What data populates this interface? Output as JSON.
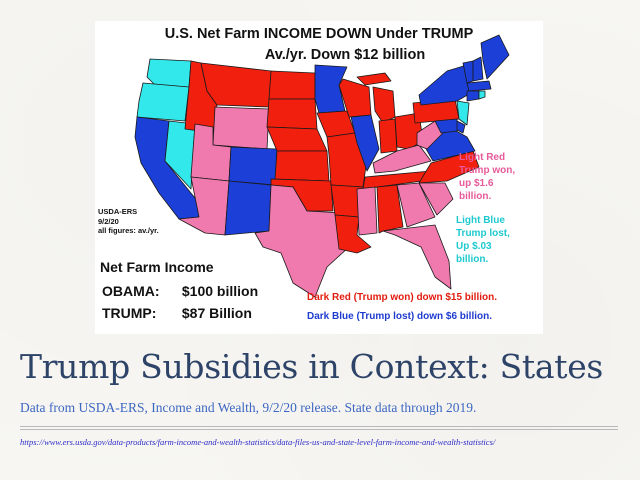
{
  "colors": {
    "dark_red": "#f01f0e",
    "light_red": "#f07aae",
    "dark_blue": "#1c3fd8",
    "light_blue": "#33e8ea",
    "title_color": "#2e4368",
    "subtitle_color": "#3d67c2"
  },
  "map": {
    "title": "U.S. Net Farm INCOME DOWN Under TRUMP",
    "subtitle": "Av./yr. Down $12 billion",
    "source_note": "USDA-ERS\n9/2/20\nall figures: av./yr.",
    "income_heading": "Net Farm Income",
    "income_rows": [
      {
        "label": "OBAMA:",
        "value": "$100 billion"
      },
      {
        "label": "TRUMP:",
        "value": "$87 Billion"
      }
    ],
    "legend_light_red": "Light Red\nTrump won,\nup $1.6\nbillion.",
    "legend_light_blue": "Light Blue\nTrump lost,\nUp $.03\nbillion.",
    "legend_dark_red": "Dark Red (Trump won) down $15 billion.",
    "legend_dark_blue": "Dark Blue (Trump lost) down $6 billion.",
    "states": [
      {
        "name": "WA",
        "category": "light_blue"
      },
      {
        "name": "OR",
        "category": "light_blue"
      },
      {
        "name": "CA",
        "category": "dark_blue"
      },
      {
        "name": "NV",
        "category": "light_blue"
      },
      {
        "name": "ID",
        "category": "dark_red"
      },
      {
        "name": "MT",
        "category": "dark_red"
      },
      {
        "name": "WY",
        "category": "light_red"
      },
      {
        "name": "UT",
        "category": "light_red"
      },
      {
        "name": "AZ",
        "category": "light_red"
      },
      {
        "name": "CO",
        "category": "dark_blue"
      },
      {
        "name": "NM",
        "category": "dark_blue"
      },
      {
        "name": "ND",
        "category": "dark_red"
      },
      {
        "name": "SD",
        "category": "dark_red"
      },
      {
        "name": "NE",
        "category": "dark_red"
      },
      {
        "name": "KS",
        "category": "dark_red"
      },
      {
        "name": "OK",
        "category": "dark_red"
      },
      {
        "name": "TX",
        "category": "light_red"
      },
      {
        "name": "MN",
        "category": "dark_blue"
      },
      {
        "name": "IA",
        "category": "dark_red"
      },
      {
        "name": "MO",
        "category": "dark_red"
      },
      {
        "name": "AR",
        "category": "dark_red"
      },
      {
        "name": "LA",
        "category": "dark_red"
      },
      {
        "name": "WI",
        "category": "dark_red"
      },
      {
        "name": "IL",
        "category": "dark_blue"
      },
      {
        "name": "MI",
        "category": "dark_red"
      },
      {
        "name": "IN",
        "category": "dark_red"
      },
      {
        "name": "OH",
        "category": "dark_red"
      },
      {
        "name": "KY",
        "category": "light_red"
      },
      {
        "name": "TN",
        "category": "dark_red"
      },
      {
        "name": "MS",
        "category": "light_red"
      },
      {
        "name": "AL",
        "category": "dark_red"
      },
      {
        "name": "GA",
        "category": "light_red"
      },
      {
        "name": "FL",
        "category": "light_red"
      },
      {
        "name": "SC",
        "category": "light_red"
      },
      {
        "name": "NC",
        "category": "dark_red"
      },
      {
        "name": "VA",
        "category": "dark_blue"
      },
      {
        "name": "WV",
        "category": "light_red"
      },
      {
        "name": "PA",
        "category": "dark_red"
      },
      {
        "name": "NY",
        "category": "dark_blue"
      },
      {
        "name": "NJ",
        "category": "light_blue"
      },
      {
        "name": "DE",
        "category": "dark_blue"
      },
      {
        "name": "MD",
        "category": "dark_blue"
      },
      {
        "name": "VT",
        "category": "dark_blue"
      },
      {
        "name": "NH",
        "category": "dark_blue"
      },
      {
        "name": "ME",
        "category": "dark_blue"
      },
      {
        "name": "MA",
        "category": "dark_blue"
      },
      {
        "name": "CT",
        "category": "dark_blue"
      },
      {
        "name": "RI",
        "category": "light_blue"
      }
    ]
  },
  "slide": {
    "title": "Trump Subsidies in Context:  States",
    "subtitle": "Data from USDA-ERS, Income and Wealth, 9/2/20 release. State data through 2019.",
    "source_url": "https://www.ers.usda.gov/data-products/farm-income-and-wealth-statistics/data-files-us-and-state-level-farm-income-and-wealth-statistics/"
  }
}
